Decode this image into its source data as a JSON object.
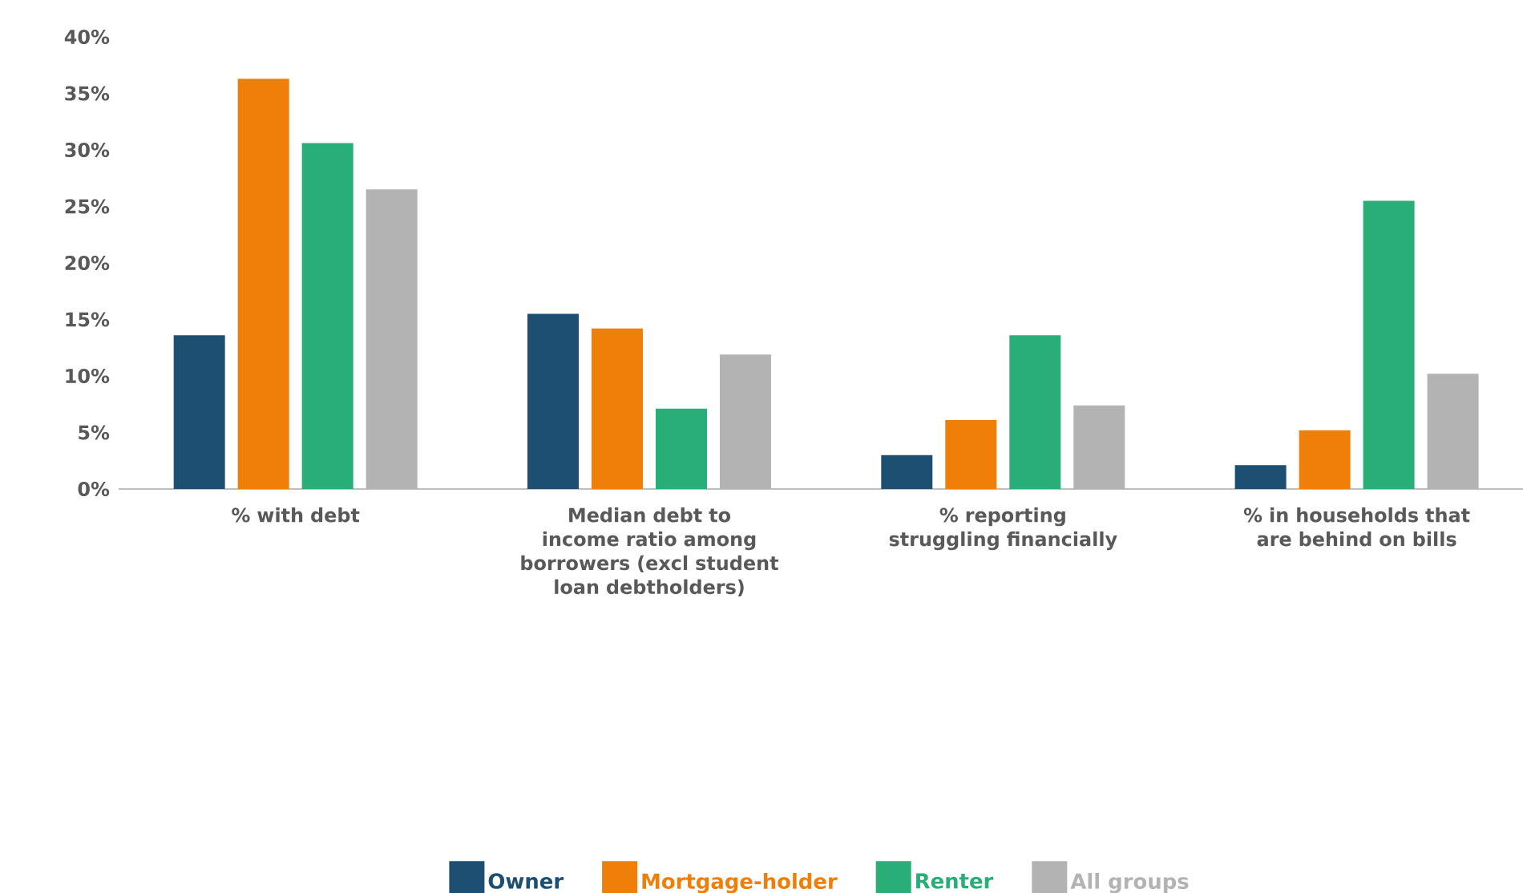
{
  "chart_data": {
    "type": "bar",
    "categories": [
      "% with debt",
      "Median debt to income ratio among borrowers (excl student loan debtholders)",
      "% reporting struggling financially",
      "% in households that are behind on bills"
    ],
    "series": [
      {
        "name": "Owner",
        "color": "#1d4f73",
        "values": [
          13.6,
          15.5,
          3.0,
          2.1
        ]
      },
      {
        "name": "Mortgage-holder",
        "color": "#f07f0a",
        "values": [
          36.3,
          14.2,
          6.1,
          5.2
        ]
      },
      {
        "name": "Renter",
        "color": "#2aae78",
        "values": [
          30.6,
          7.1,
          13.6,
          25.5
        ]
      },
      {
        "name": "All groups",
        "color": "#b3b3b3",
        "values": [
          26.5,
          11.9,
          7.4,
          10.2
        ]
      }
    ],
    "ylim": [
      0,
      40
    ],
    "yticks": [
      {
        "value": 0,
        "label": "0%"
      },
      {
        "value": 5,
        "label": "5%"
      },
      {
        "value": 10,
        "label": "10%"
      },
      {
        "value": 15,
        "label": "15%"
      },
      {
        "value": 20,
        "label": "20%"
      },
      {
        "value": 25,
        "label": "25%"
      },
      {
        "value": 30,
        "label": "30%"
      },
      {
        "value": 35,
        "label": "35%"
      },
      {
        "value": 40,
        "label": "40%"
      }
    ],
    "grid": false,
    "legend": "bottom"
  }
}
